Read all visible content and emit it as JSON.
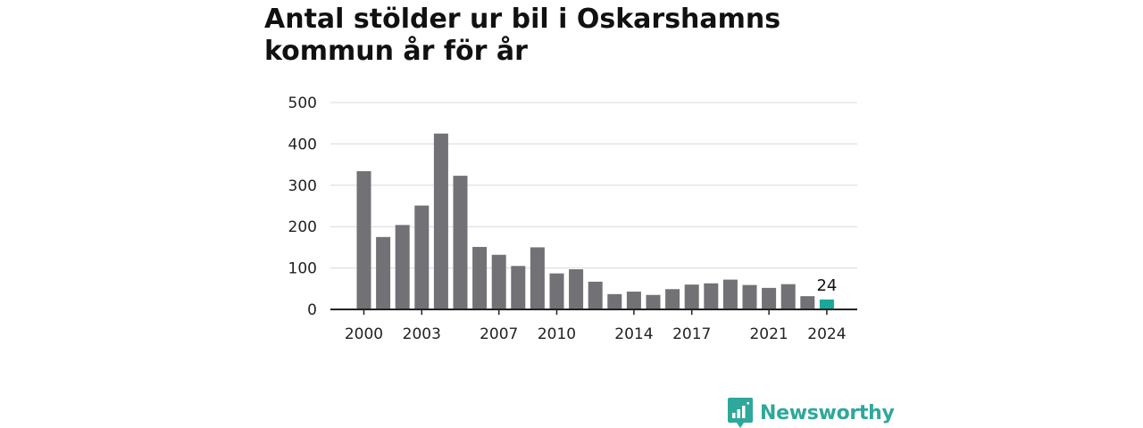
{
  "chart_data": {
    "type": "bar",
    "title": "Antal stölder ur bil i Oskarshamns kommun år för år",
    "x": [
      2000,
      2001,
      2002,
      2003,
      2004,
      2005,
      2006,
      2007,
      2008,
      2009,
      2010,
      2011,
      2012,
      2013,
      2014,
      2015,
      2016,
      2017,
      2018,
      2019,
      2020,
      2021,
      2022,
      2023,
      2024
    ],
    "values": [
      334,
      175,
      204,
      251,
      425,
      323,
      151,
      132,
      105,
      150,
      87,
      97,
      67,
      37,
      43,
      35,
      49,
      60,
      63,
      72,
      59,
      52,
      61,
      32,
      24
    ],
    "x_ticks": [
      "2000",
      "2003",
      "2007",
      "2010",
      "2014",
      "2017",
      "2021",
      "2024"
    ],
    "y_ticks": [
      "0",
      "100",
      "200",
      "300",
      "400",
      "500"
    ],
    "ylim": [
      0,
      500
    ],
    "grid": true,
    "highlight": {
      "year": 2024,
      "label": "24",
      "color": "#1aa89a"
    },
    "bar_color": "#727176"
  },
  "brand": {
    "name": "Newsworthy",
    "color": "#2ea89a"
  }
}
